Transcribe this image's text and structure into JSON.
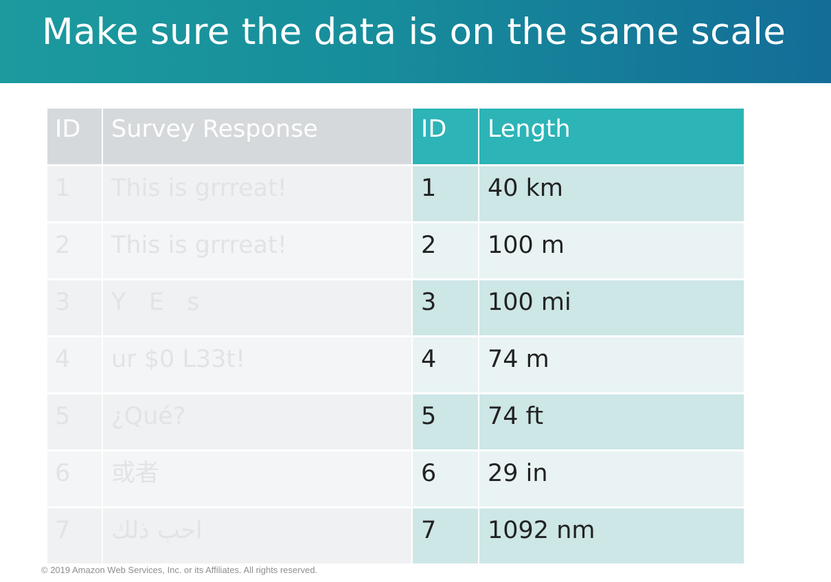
{
  "slide": {
    "title": "Make sure the data is on the same scale",
    "footer": "© 2019 Amazon Web Services, Inc. or its Affiliates. All rights reserved."
  },
  "survey_table": {
    "headers": [
      "ID",
      "Survey Response"
    ],
    "rows": [
      [
        "1",
        "This is grrreat!"
      ],
      [
        "2",
        "This is grrreat!"
      ],
      [
        "3",
        "Y   E   s"
      ],
      [
        "4",
        "ur $0 L33t!"
      ],
      [
        "5",
        "¿Qué?"
      ],
      [
        "6",
        "或者"
      ],
      [
        "7",
        "احب ذلك"
      ]
    ]
  },
  "length_table": {
    "headers": [
      "ID",
      "Length"
    ],
    "rows": [
      [
        "1",
        "40 km"
      ],
      [
        "2",
        "100 m"
      ],
      [
        "3",
        "100 mi"
      ],
      [
        "4",
        "74 m"
      ],
      [
        "5",
        "74 ft"
      ],
      [
        "6",
        "29 in"
      ],
      [
        "7",
        "1092 nm"
      ]
    ]
  },
  "colors": {
    "header_gradient_start": "#1c9a9e",
    "header_gradient_end": "#136d97",
    "length_header": "#2cb4b7",
    "length_row_odd": "#cde6e6",
    "length_row_even": "#e9f3f4",
    "survey_header": "#d5d9db"
  }
}
